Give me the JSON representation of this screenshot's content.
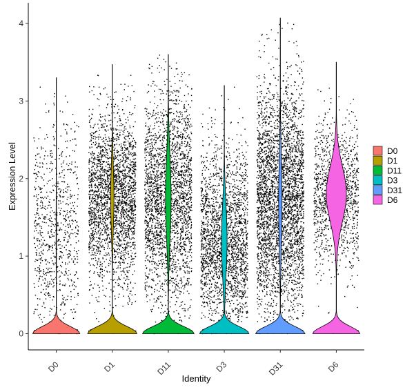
{
  "chart_data": {
    "type": "violin",
    "xlabel": "Identity",
    "ylabel": "Expression Level",
    "ylim": [
      -0.3,
      4.15
    ],
    "yticks": [
      0,
      1,
      2,
      3,
      4
    ],
    "grid": false,
    "legend_position": "right",
    "categories": [
      "D0",
      "D1",
      "D11",
      "D3",
      "D31",
      "D6"
    ],
    "series": [
      {
        "name": "D0",
        "color": "#F8766D",
        "max": 3.3,
        "zero_fraction": 0.6,
        "mode": 1.3,
        "spread": 0.75,
        "points": 900,
        "jitter_half_width": 0.4,
        "violin_half_width_zero": 0.42,
        "violin_half_width_body": 0.004
      },
      {
        "name": "D1",
        "color": "#B79F00",
        "max": 3.47,
        "zero_fraction": 0.2,
        "mode": 1.75,
        "spread": 0.55,
        "points": 2600,
        "jitter_half_width": 0.42,
        "violin_half_width_zero": 0.44,
        "violin_half_width_body": 0.03
      },
      {
        "name": "D11",
        "color": "#00BA38",
        "max": 3.6,
        "zero_fraction": 0.18,
        "mode": 1.75,
        "spread": 0.72,
        "points": 2700,
        "jitter_half_width": 0.42,
        "violin_half_width_zero": 0.46,
        "violin_half_width_body": 0.05
      },
      {
        "name": "D3",
        "color": "#00BFC4",
        "max": 3.2,
        "zero_fraction": 0.2,
        "mode": 1.2,
        "spread": 0.62,
        "points": 2300,
        "jitter_half_width": 0.42,
        "violin_half_width_zero": 0.44,
        "violin_half_width_body": 0.05
      },
      {
        "name": "D31",
        "color": "#619CFF",
        "max": 4.07,
        "zero_fraction": 0.12,
        "mode": 1.7,
        "spread": 0.78,
        "points": 3600,
        "jitter_half_width": 0.42,
        "violin_half_width_zero": 0.44,
        "violin_half_width_body": 0.03
      },
      {
        "name": "D6",
        "color": "#F564E3",
        "max": 3.5,
        "zero_fraction": 0.15,
        "mode": 1.8,
        "spread": 0.48,
        "points": 1200,
        "jitter_half_width": 0.4,
        "violin_half_width_zero": 0.42,
        "violin_half_width_body": 0.18
      }
    ]
  }
}
